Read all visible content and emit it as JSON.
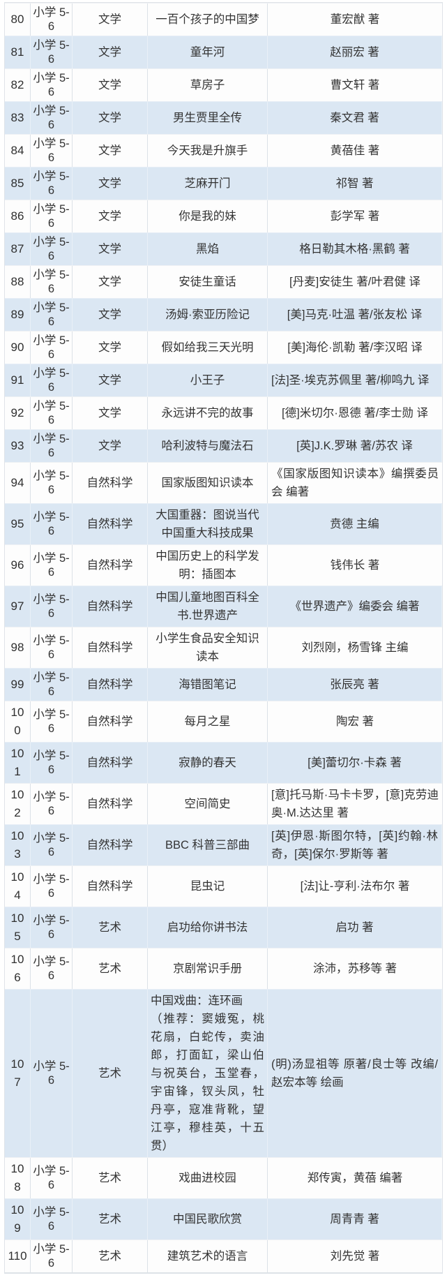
{
  "table": {
    "description": "recommended-reading-list",
    "grade_label": "小学 5-6",
    "categories": [
      "文学",
      "自然科学",
      "艺术"
    ],
    "colors": {
      "row_even": "#fdfdfd",
      "row_odd": "#dbe7f3",
      "text": "#333333",
      "grid_line": "#dce1e7"
    },
    "rows": [
      {
        "num": "80",
        "grade": "小学 5-6",
        "category": "文学",
        "title": "一百个孩子的中国梦",
        "author": "董宏猷 著"
      },
      {
        "num": "81",
        "grade": "小学 5-6",
        "category": "文学",
        "title": "童年河",
        "author": "赵丽宏 著"
      },
      {
        "num": "82",
        "grade": "小学 5-6",
        "category": "文学",
        "title": "草房子",
        "author": "曹文轩 著"
      },
      {
        "num": "83",
        "grade": "小学 5-6",
        "category": "文学",
        "title": "男生贾里全传",
        "author": "秦文君 著"
      },
      {
        "num": "84",
        "grade": "小学 5-6",
        "category": "文学",
        "title": "今天我是升旗手",
        "author": "黄蓓佳 著"
      },
      {
        "num": "85",
        "grade": "小学 5-6",
        "category": "文学",
        "title": "芝麻开门",
        "author": "祁智 著"
      },
      {
        "num": "86",
        "grade": "小学 5-6",
        "category": "文学",
        "title": "你是我的妹",
        "author": "彭学军 著"
      },
      {
        "num": "87",
        "grade": "小学 5-6",
        "category": "文学",
        "title": "黑焰",
        "author": "格日勒其木格·黑鹤 著"
      },
      {
        "num": "88",
        "grade": "小学 5-6",
        "category": "文学",
        "title": "安徒生童话",
        "author": "[丹麦]安徒生 著/叶君健 译"
      },
      {
        "num": "89",
        "grade": "小学 5-6",
        "category": "文学",
        "title": "汤姆·索亚历险记",
        "author": "[美]马克·吐温 著/张友松 译"
      },
      {
        "num": "90",
        "grade": "小学 5-6",
        "category": "文学",
        "title": "假如给我三天光明",
        "author": "[美]海伦·凯勒 著/李汉昭 译"
      },
      {
        "num": "91",
        "grade": "小学 5-6",
        "category": "文学",
        "title": "小王子",
        "author": "[法]圣·埃克苏佩里 著/柳鸣九 译"
      },
      {
        "num": "92",
        "grade": "小学 5-6",
        "category": "文学",
        "title": "永远讲不完的故事",
        "author": "[德]米切尔·恩德 著/李士勋 译"
      },
      {
        "num": "93",
        "grade": "小学 5-6",
        "category": "文学",
        "title": "哈利波特与魔法石",
        "author": "[英]J.K.罗琳 著/苏农 译"
      },
      {
        "num": "94",
        "grade": "小学 5-6",
        "category": "自然科学",
        "title": "国家版图知识读本",
        "author": "《国家版图知识读本》编撰委员会 编著"
      },
      {
        "num": "95",
        "grade": "小学 5-6",
        "category": "自然科学",
        "title": "大国重器：图说当代中国重大科技成果",
        "author": "贲德 主编"
      },
      {
        "num": "96",
        "grade": "小学 5-6",
        "category": "自然科学",
        "title": "中国历史上的科学发明：插图本",
        "author": "钱伟长 著"
      },
      {
        "num": "97",
        "grade": "小学 5-6",
        "category": "自然科学",
        "title": "中国儿童地图百科全书.世界遗产",
        "author": "《世界遗产》编委会 编著"
      },
      {
        "num": "98",
        "grade": "小学 5-6",
        "category": "自然科学",
        "title": "小学生食品安全知识读本",
        "author": "刘烈刚，杨雪锋 主编"
      },
      {
        "num": "99",
        "grade": "小学 5-6",
        "category": "自然科学",
        "title": "海错图笔记",
        "author": "张辰亮 著"
      },
      {
        "num": "100",
        "grade": "小学 5-6",
        "category": "自然科学",
        "title": "每月之星",
        "author": "陶宏 著"
      },
      {
        "num": "101",
        "grade": "小学 5-6",
        "category": "自然科学",
        "title": "寂静的春天",
        "author": "[美]蕾切尔·卡森 著"
      },
      {
        "num": "102",
        "grade": "小学 5-6",
        "category": "自然科学",
        "title": "空间简史",
        "author": "[意]托马斯·马卡卡罗，[意]克劳迪奥·M.达达里 著"
      },
      {
        "num": "103",
        "grade": "小学 5-6",
        "category": "自然科学",
        "title": "BBC 科普三部曲",
        "author": "[英]伊恩·斯图尔特，[英]约翰·林奇，[英]保尔·罗斯等 著"
      },
      {
        "num": "104",
        "grade": "小学 5-6",
        "category": "自然科学",
        "title": "昆虫记",
        "author": "[法]让-亨利·法布尔 著"
      },
      {
        "num": "105",
        "grade": "小学 5-6",
        "category": "艺术",
        "title": "启功给你讲书法",
        "author": "启功 著"
      },
      {
        "num": "106",
        "grade": "小学 5-6",
        "category": "艺术",
        "title": "京剧常识手册",
        "author": "涂沛，苏移等 著"
      },
      {
        "num": "107",
        "grade": "小学 5-6",
        "category": "艺术",
        "title": "中国戏曲：连环画\n（推荐：窦娥冤，桃花扇，白蛇传，卖油郎，打面缸，梁山伯与祝英台，玉堂春，宇宙锋，钗头凤，牡丹亭，寇准背靴，望江亭，穆桂英，十五贯）",
        "author": "(明)汤显祖等 原著/良士等 改编/赵宏本等 绘画"
      },
      {
        "num": "108",
        "grade": "小学 5-6",
        "category": "艺术",
        "title": "戏曲进校园",
        "author": "郑传寅，黄蓓 编著"
      },
      {
        "num": "109",
        "grade": "小学 5-6",
        "category": "艺术",
        "title": "中国民歌欣赏",
        "author": "周青青 著"
      },
      {
        "num": "110",
        "grade": "小学 5-6",
        "category": "艺术",
        "title": "建筑艺术的语言",
        "author": "刘先觉 著"
      }
    ]
  }
}
